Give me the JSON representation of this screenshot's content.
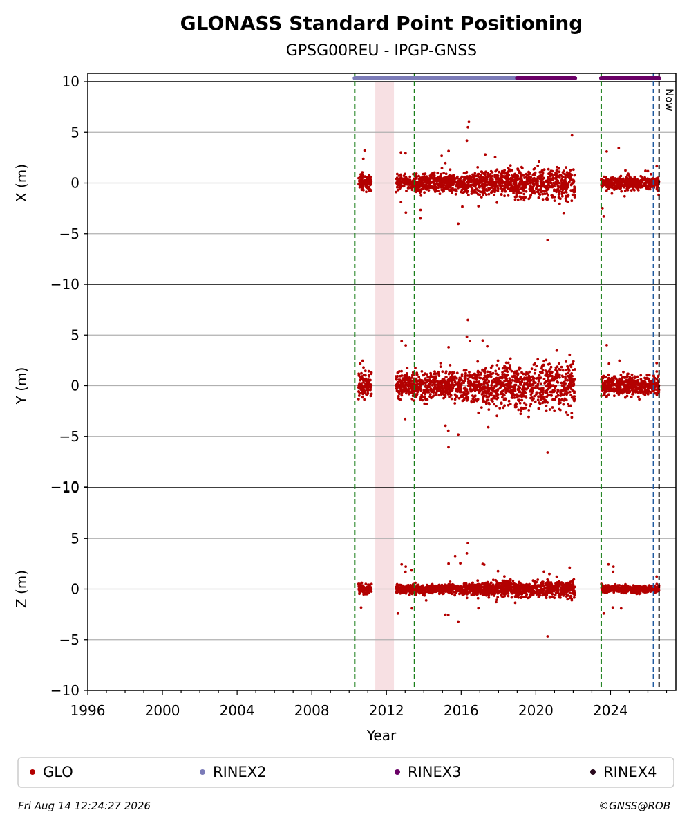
{
  "chart_data": {
    "type": "scatter",
    "title": "GLONASS Standard Point Positioning",
    "subtitle": "GPSG00REU - IPGP-GNSS",
    "xlabel": "Year",
    "xlim": [
      1996,
      2027.5
    ],
    "x_ticks": [
      "1996",
      "2000",
      "2004",
      "2008",
      "2012",
      "2016",
      "2020",
      "2024"
    ],
    "x_tick_values": [
      1996,
      2000,
      2004,
      2008,
      2012,
      2016,
      2020,
      2024
    ],
    "panels": [
      {
        "ylabel": "X (m)",
        "ylim": [
          -10,
          10
        ],
        "y_ticks": [
          "10",
          "5",
          "0",
          "−5",
          "−10"
        ],
        "y_tick_values": [
          10,
          5,
          0,
          -5,
          -10
        ],
        "spread": 1.1,
        "outlier": 3.5
      },
      {
        "ylabel": "Y (m)",
        "ylim": [
          -10,
          10
        ],
        "y_ticks": [
          "10",
          "5",
          "0",
          "−5",
          "−10"
        ],
        "y_tick_values": [
          10,
          5,
          0,
          -5,
          -10
        ],
        "spread": 1.7,
        "outlier": 4.5
      },
      {
        "ylabel": "Z (m)",
        "ylim": [
          -10,
          10
        ],
        "y_ticks": [
          "10",
          "5",
          "0",
          "−5",
          "−10"
        ],
        "y_tick_values": [
          10,
          5,
          0,
          -5,
          -10
        ],
        "spread": 0.6,
        "outlier": 2.5
      }
    ],
    "data_segments": [
      [
        2010.5,
        2011.2
      ],
      [
        2012.5,
        2015.0
      ],
      [
        2015.0,
        2022.1
      ],
      [
        2023.5,
        2026.6
      ]
    ],
    "shaded_span": [
      2011.4,
      2012.4
    ],
    "green_dashed_lines": [
      2010.3,
      2013.5,
      2023.5
    ],
    "blue_dashed_line": 2026.3,
    "now_line": 2026.6,
    "now_label": "Now",
    "rinex_bars": [
      {
        "name": "RINEX2",
        "start": 2010.3,
        "end": 2019.0
      },
      {
        "name": "RINEX3",
        "start": 2019.0,
        "end": 2022.1
      },
      {
        "name": "RINEX3",
        "start": 2023.5,
        "end": 2026.6
      }
    ],
    "legend": [
      {
        "name": "GLO",
        "color": "#b30000"
      },
      {
        "name": "RINEX2",
        "color": "#7b7bb8"
      },
      {
        "name": "RINEX3",
        "color": "#6a0066"
      },
      {
        "name": "RINEX4",
        "color": "#2a0a1e"
      }
    ],
    "legend_placement": "bottom",
    "grid": "horizontal"
  },
  "footer": {
    "timestamp": "Fri Aug 14 12:24:27 2026",
    "credit": "©GNSS@ROB"
  }
}
